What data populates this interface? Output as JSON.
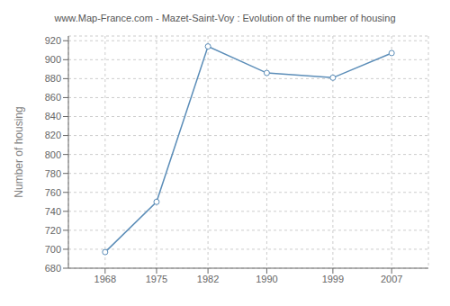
{
  "chart_data": {
    "type": "line",
    "title": "www.Map-France.com - Mazet-Saint-Voy : Evolution of the number of housing",
    "ylabel": "Number of housing",
    "x": [
      1968,
      1975,
      1982,
      1990,
      1999,
      2007
    ],
    "values": [
      697,
      750,
      914,
      886,
      881,
      907
    ],
    "color": "#5b8db8",
    "marker": "circle",
    "xlim": [
      1963,
      2012
    ],
    "xticks": [
      1968,
      1975,
      1982,
      1990,
      1999,
      2007
    ],
    "ylim": [
      680,
      925
    ],
    "yticks": [
      680,
      700,
      720,
      740,
      760,
      780,
      800,
      820,
      840,
      860,
      880,
      900,
      920
    ],
    "grid": true
  }
}
